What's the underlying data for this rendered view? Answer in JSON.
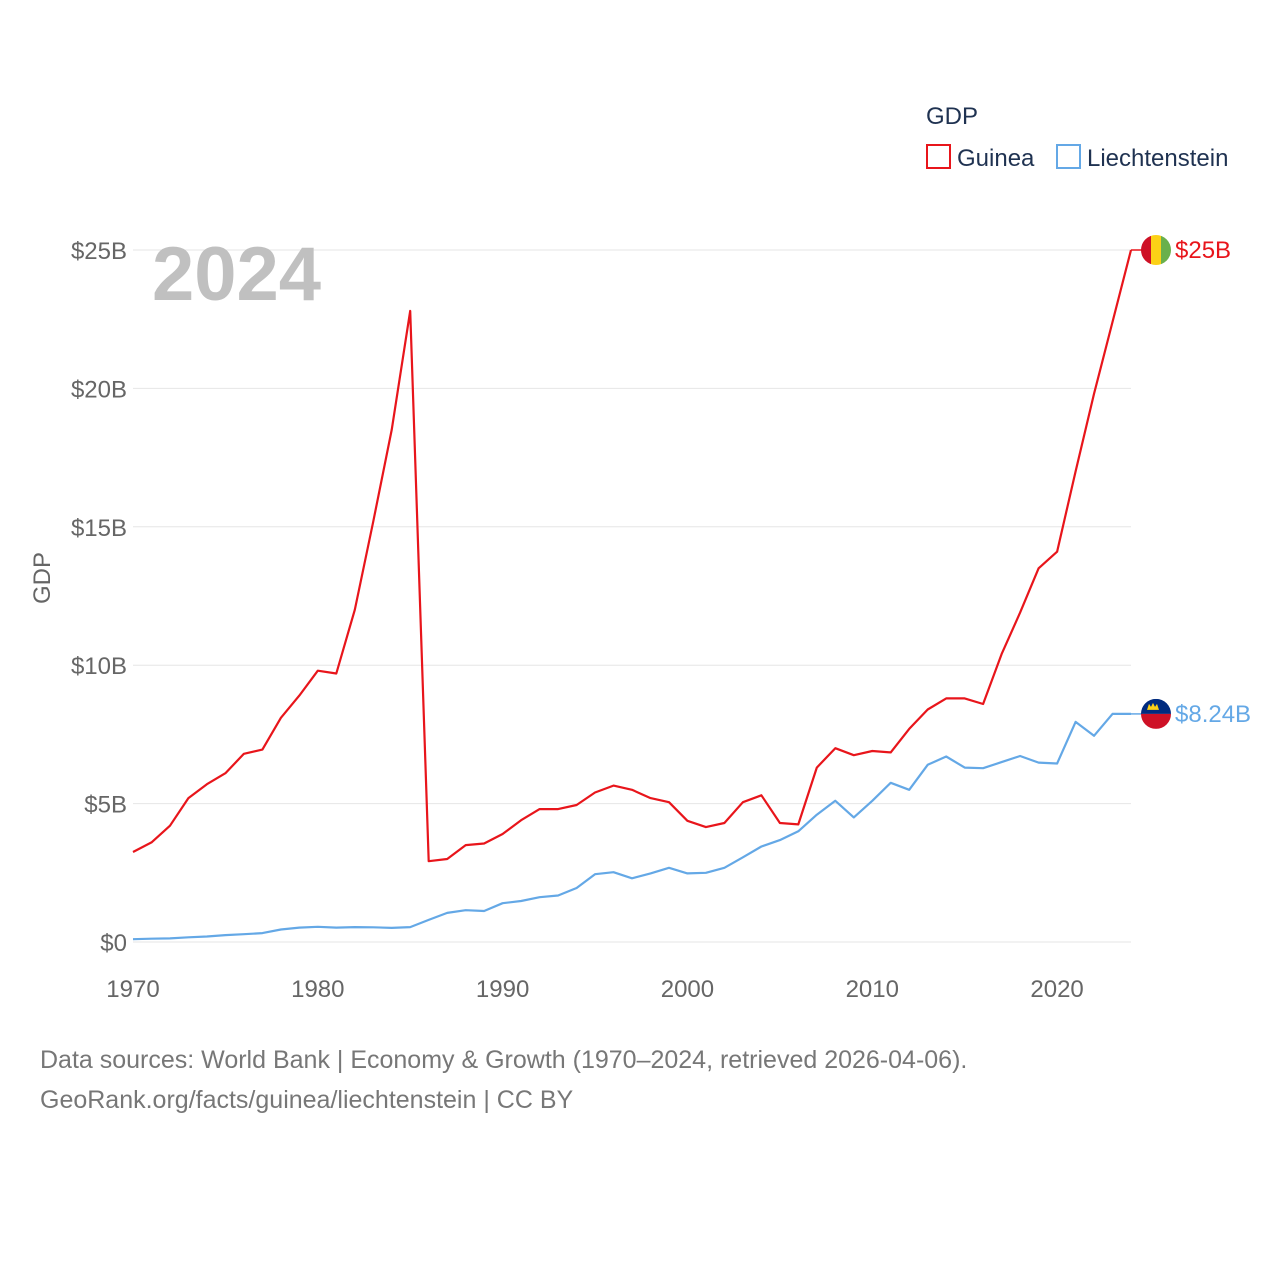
{
  "chart_data": {
    "type": "line",
    "title": "",
    "ylabel": "GDP",
    "xlabel": "",
    "year_label": "2024",
    "legend_title": "GDP",
    "xlim": [
      1970,
      2024
    ],
    "ylim": [
      0,
      25
    ],
    "x_ticks": [
      1970,
      1980,
      1990,
      2000,
      2010,
      2020
    ],
    "x_tick_labels": [
      "1970",
      "1980",
      "1990",
      "2000",
      "2010",
      "2020"
    ],
    "y_ticks": [
      0,
      5,
      10,
      15,
      20,
      25
    ],
    "y_tick_labels": [
      "$0",
      "$5B",
      "$10B",
      "$15B",
      "$20B",
      "$25B"
    ],
    "units": "billion USD",
    "series": [
      {
        "name": "Guinea",
        "color": "#e8151b",
        "end_label": "$25B",
        "flag_colors": [
          "#ce1126",
          "#fcd116",
          "#6ab04c"
        ],
        "x": [
          1970,
          1971,
          1972,
          1973,
          1974,
          1975,
          1976,
          1977,
          1978,
          1979,
          1980,
          1981,
          1982,
          1983,
          1984,
          1985,
          1986,
          1987,
          1988,
          1989,
          1990,
          1991,
          1992,
          1993,
          1994,
          1995,
          1996,
          1997,
          1998,
          1999,
          2000,
          2001,
          2002,
          2003,
          2004,
          2005,
          2006,
          2007,
          2008,
          2009,
          2010,
          2011,
          2012,
          2013,
          2014,
          2015,
          2016,
          2017,
          2018,
          2019,
          2020,
          2021,
          2022,
          2023,
          2024
        ],
        "values": [
          3.25,
          3.6,
          4.2,
          5.2,
          5.7,
          6.1,
          6.8,
          6.95,
          8.1,
          8.9,
          9.8,
          9.7,
          12.0,
          15.2,
          18.5,
          22.8,
          2.92,
          3.0,
          3.5,
          3.56,
          3.9,
          4.4,
          4.8,
          4.8,
          4.95,
          5.4,
          5.65,
          5.5,
          5.2,
          5.05,
          4.38,
          4.15,
          4.3,
          5.05,
          5.3,
          4.3,
          4.25,
          6.3,
          7.0,
          6.75,
          6.9,
          6.85,
          7.7,
          8.4,
          8.8,
          8.8,
          8.6,
          10.4,
          11.9,
          13.5,
          14.1,
          17.0,
          19.8,
          22.4,
          25.0
        ]
      },
      {
        "name": "Liechtenstein",
        "color": "#64a8e6",
        "end_label": "$8.24B",
        "flag_colors": [
          "#002b7f",
          "#ce1126",
          "#fcd116"
        ],
        "x": [
          1970,
          1971,
          1972,
          1973,
          1974,
          1975,
          1976,
          1977,
          1978,
          1979,
          1980,
          1981,
          1982,
          1983,
          1984,
          1985,
          1986,
          1987,
          1988,
          1989,
          1990,
          1991,
          1992,
          1993,
          1994,
          1995,
          1996,
          1997,
          1998,
          1999,
          2000,
          2001,
          2002,
          2003,
          2004,
          2005,
          2006,
          2007,
          2008,
          2009,
          2010,
          2011,
          2012,
          2013,
          2014,
          2015,
          2016,
          2017,
          2018,
          2019,
          2020,
          2021,
          2022,
          2023,
          2024
        ],
        "values": [
          0.1,
          0.12,
          0.13,
          0.17,
          0.2,
          0.25,
          0.28,
          0.32,
          0.45,
          0.52,
          0.55,
          0.52,
          0.54,
          0.53,
          0.51,
          0.54,
          0.8,
          1.05,
          1.15,
          1.12,
          1.4,
          1.48,
          1.62,
          1.68,
          1.95,
          2.45,
          2.52,
          2.3,
          2.48,
          2.68,
          2.48,
          2.5,
          2.68,
          3.06,
          3.45,
          3.68,
          4.0,
          4.6,
          5.1,
          4.5,
          5.1,
          5.75,
          5.5,
          6.4,
          6.7,
          6.3,
          6.28,
          6.5,
          6.72,
          6.48,
          6.45,
          7.95,
          7.45,
          8.24,
          8.24
        ]
      }
    ]
  },
  "footer": {
    "line1": "Data sources: World Bank | Economy & Growth (1970–2024, retrieved 2026-04-06).",
    "line2": "GeoRank.org/facts/guinea/liechtenstein | CC BY"
  }
}
